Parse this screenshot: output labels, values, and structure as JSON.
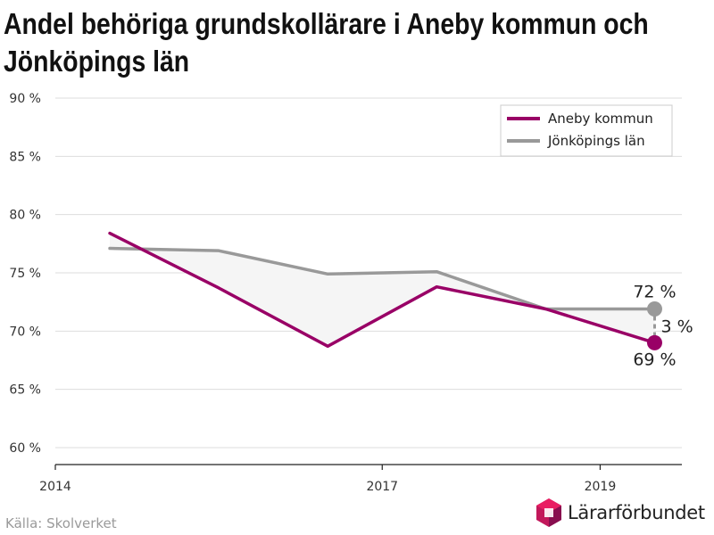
{
  "title": "Andel behöriga grundskollärare i Aneby kommun och Jönköpings län",
  "source": "Källa: Skolverket",
  "logo": {
    "text": "Lärarförbundet",
    "icon": "hexagon-logo-icon"
  },
  "colors": {
    "aneby": "#990066",
    "jonkoping": "#999999",
    "grid": "#dddddd",
    "fill": "#f5f5f5"
  },
  "chart_data": {
    "type": "line",
    "title": "Andel behöriga grundskollärare i Aneby kommun och Jönköpings län",
    "xlabel": "",
    "ylabel": "",
    "x_ticks": [
      "2014",
      "2017",
      "2019"
    ],
    "x_range": [
      2014.0,
      2019.75
    ],
    "y_ticks": [
      "60 %",
      "65 %",
      "70 %",
      "75 %",
      "80 %",
      "85 %",
      "90 %"
    ],
    "y_range": [
      60,
      90
    ],
    "grid": true,
    "legend_position": "top-right",
    "series": [
      {
        "name": "Aneby kommun",
        "color": "#990066",
        "points": [
          [
            2014.5,
            78.4
          ],
          [
            2015.5,
            73.7
          ],
          [
            2016.5,
            68.7
          ],
          [
            2017.5,
            73.8
          ],
          [
            2018.5,
            71.9
          ],
          [
            2019.5,
            69
          ]
        ]
      },
      {
        "name": "Jönköpings län",
        "color": "#999999",
        "points": [
          [
            2014.5,
            77.1
          ],
          [
            2015.5,
            76.9
          ],
          [
            2016.5,
            74.9
          ],
          [
            2017.5,
            75.1
          ],
          [
            2018.5,
            71.9
          ],
          [
            2019.5,
            71.9
          ]
        ]
      }
    ],
    "annotations": {
      "jonkoping_end": "72 %",
      "aneby_end": "69 %",
      "difference": "3 %"
    }
  }
}
